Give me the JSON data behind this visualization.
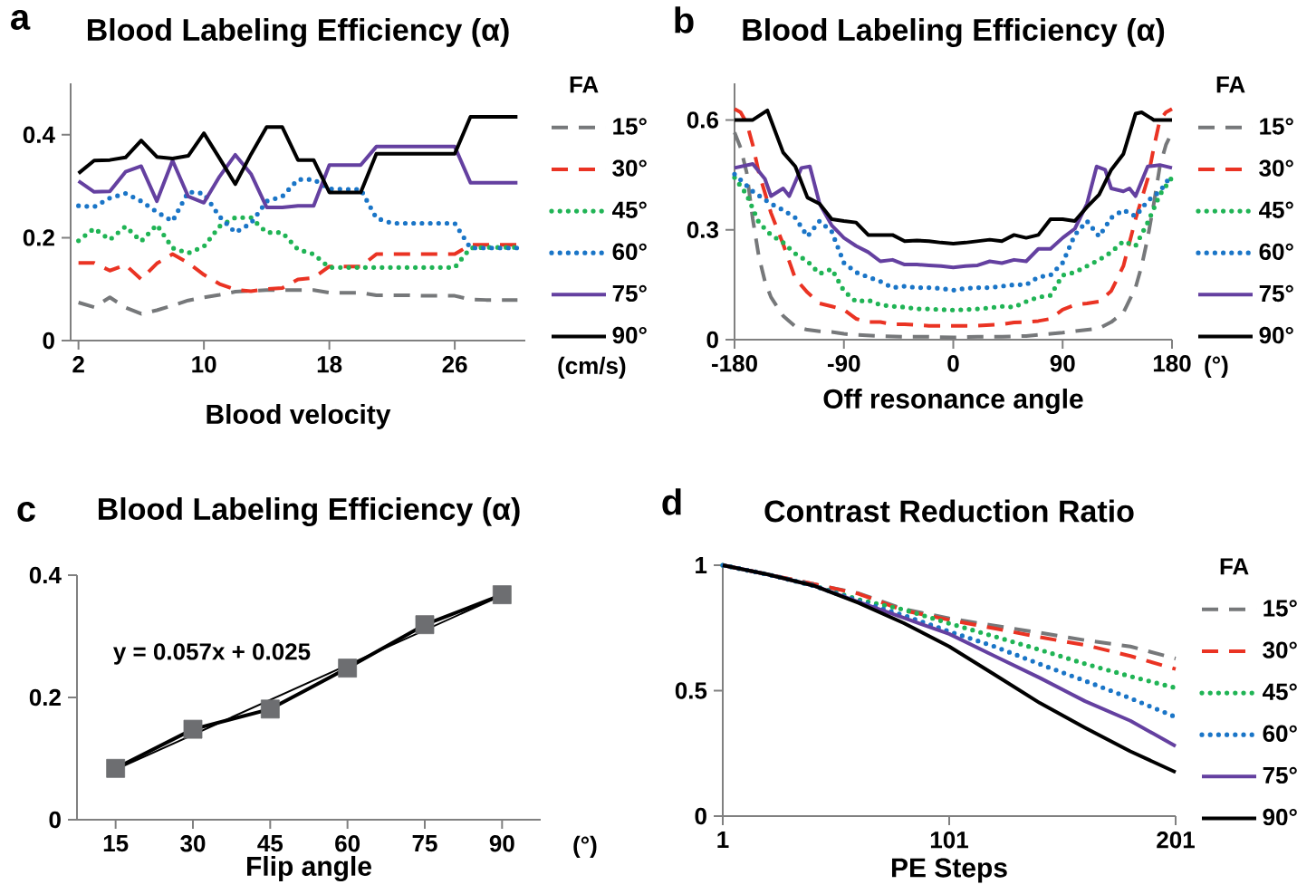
{
  "chart_data": [
    {
      "type": "line",
      "title": "Blood Labeling Efficiency (α)",
      "xlabel": "Blood velocity",
      "legend_title": "FA",
      "legend": "right",
      "annotations": [
        "a",
        "(cm/s)"
      ],
      "x": [
        2,
        3,
        4,
        5,
        6,
        7,
        8,
        9,
        10,
        11,
        12,
        13,
        14,
        15,
        16,
        17,
        18,
        19,
        20,
        21,
        22,
        23,
        24,
        25,
        26,
        27,
        28,
        29,
        30
      ],
      "xlim": [
        1.5,
        30.5
      ],
      "ylim": [
        0,
        0.5
      ],
      "xticks": [
        2,
        10,
        18,
        26
      ],
      "yticks": [
        0,
        0.2,
        0.4
      ],
      "series": [
        {
          "name": "15°",
          "color": "#76787a",
          "line_style": "dashed",
          "values": [
            0.074,
            0.065,
            0.084,
            0.064,
            0.052,
            0.059,
            0.068,
            0.078,
            0.084,
            0.089,
            0.095,
            0.097,
            0.098,
            0.098,
            0.098,
            0.098,
            0.093,
            0.093,
            0.093,
            0.088,
            0.088,
            0.088,
            0.087,
            0.087,
            0.087,
            0.08,
            0.079,
            0.079,
            0.079
          ]
        },
        {
          "name": "30°",
          "color": "#ea3323",
          "line_style": "dashed",
          "values": [
            0.151,
            0.151,
            0.136,
            0.147,
            0.119,
            0.15,
            0.168,
            0.151,
            0.128,
            0.11,
            0.099,
            0.096,
            0.1,
            0.102,
            0.119,
            0.122,
            0.144,
            0.144,
            0.144,
            0.168,
            0.168,
            0.168,
            0.168,
            0.168,
            0.168,
            0.186,
            0.186,
            0.186,
            0.186
          ]
        },
        {
          "name": "45°",
          "color": "#20b455",
          "line_style": "dotted",
          "values": [
            0.194,
            0.218,
            0.196,
            0.222,
            0.193,
            0.225,
            0.18,
            0.17,
            0.183,
            0.222,
            0.239,
            0.239,
            0.21,
            0.21,
            0.177,
            0.168,
            0.142,
            0.142,
            0.142,
            0.142,
            0.142,
            0.142,
            0.142,
            0.142,
            0.142,
            0.18,
            0.181,
            0.181,
            0.181
          ]
        },
        {
          "name": "60°",
          "color": "#1a75c7",
          "line_style": "dotted",
          "values": [
            0.262,
            0.26,
            0.277,
            0.286,
            0.271,
            0.25,
            0.232,
            0.289,
            0.286,
            0.241,
            0.21,
            0.228,
            0.271,
            0.28,
            0.313,
            0.313,
            0.295,
            0.294,
            0.294,
            0.238,
            0.228,
            0.228,
            0.228,
            0.228,
            0.228,
            0.18,
            0.18,
            0.18,
            0.18
          ]
        },
        {
          "name": "75°",
          "color": "#6440a0",
          "line_style": "solid",
          "values": [
            0.31,
            0.289,
            0.29,
            0.328,
            0.339,
            0.271,
            0.35,
            0.28,
            0.268,
            0.319,
            0.361,
            0.324,
            0.259,
            0.259,
            0.262,
            0.262,
            0.341,
            0.341,
            0.341,
            0.377,
            0.377,
            0.377,
            0.377,
            0.377,
            0.377,
            0.307,
            0.307,
            0.307,
            0.307
          ]
        },
        {
          "name": "90°",
          "color": "#000000",
          "line_style": "solid",
          "values": [
            0.325,
            0.35,
            0.351,
            0.356,
            0.389,
            0.357,
            0.354,
            0.359,
            0.403,
            0.354,
            0.304,
            0.362,
            0.415,
            0.415,
            0.351,
            0.351,
            0.288,
            0.288,
            0.288,
            0.363,
            0.363,
            0.363,
            0.363,
            0.363,
            0.363,
            0.435,
            0.435,
            0.435,
            0.435
          ]
        }
      ]
    },
    {
      "type": "line",
      "title": "Blood Labeling Efficiency (α)",
      "xlabel": "Off resonance angle",
      "legend_title": "FA",
      "legend": "right",
      "annotations": [
        "b",
        "(°)"
      ],
      "xlim": [
        -180,
        180
      ],
      "ylim": [
        0,
        0.7
      ],
      "xticks": [
        -180,
        -90,
        0,
        90,
        180
      ],
      "yticks": [
        0,
        0.3,
        0.6
      ],
      "series": [
        {
          "name": "15°",
          "color": "#76787a",
          "line_style": "dashed",
          "x": [
            -180,
            -175,
            -170,
            -165,
            -160,
            -155,
            -150,
            -140,
            -130,
            -120,
            -110,
            -100,
            -90,
            -80,
            -60,
            -40,
            -20,
            0,
            20,
            40,
            60,
            80,
            90,
            100,
            110,
            120,
            130,
            140,
            150,
            155,
            160,
            165,
            170,
            175,
            180
          ],
          "values": [
            0.566,
            0.524,
            0.456,
            0.329,
            0.227,
            0.159,
            0.116,
            0.065,
            0.036,
            0.027,
            0.023,
            0.021,
            0.016,
            0.013,
            0.01,
            0.008,
            0.008,
            0.006,
            0.008,
            0.008,
            0.01,
            0.016,
            0.019,
            0.023,
            0.027,
            0.031,
            0.048,
            0.074,
            0.142,
            0.201,
            0.278,
            0.371,
            0.473,
            0.532,
            0.566
          ]
        },
        {
          "name": "30°",
          "color": "#ea3323",
          "line_style": "dashed",
          "x": [
            -180,
            -175,
            -170,
            -165,
            -160,
            -150,
            -140,
            -130,
            -120,
            -110,
            -100,
            -90,
            -80,
            -70,
            -60,
            -50,
            -40,
            -30,
            -20,
            -10,
            0,
            10,
            20,
            30,
            40,
            50,
            60,
            70,
            80,
            90,
            100,
            110,
            120,
            130,
            140,
            150,
            160,
            165,
            170,
            175,
            180
          ],
          "values": [
            0.63,
            0.621,
            0.592,
            0.532,
            0.456,
            0.346,
            0.261,
            0.167,
            0.129,
            0.099,
            0.091,
            0.082,
            0.057,
            0.048,
            0.048,
            0.042,
            0.042,
            0.04,
            0.038,
            0.038,
            0.038,
            0.038,
            0.038,
            0.04,
            0.042,
            0.047,
            0.048,
            0.051,
            0.057,
            0.082,
            0.095,
            0.099,
            0.104,
            0.133,
            0.201,
            0.329,
            0.439,
            0.524,
            0.6,
            0.621,
            0.63
          ]
        },
        {
          "name": "45°",
          "color": "#20b455",
          "line_style": "dotted",
          "x": [
            -180,
            -170,
            -160,
            -150,
            -140,
            -130,
            -120,
            -110,
            -100,
            -90,
            -80,
            -70,
            -60,
            -50,
            -40,
            -30,
            -20,
            -10,
            0,
            10,
            20,
            30,
            40,
            50,
            60,
            70,
            80,
            90,
            100,
            110,
            120,
            130,
            140,
            150,
            160,
            170,
            180
          ],
          "values": [
            0.443,
            0.396,
            0.32,
            0.286,
            0.265,
            0.235,
            0.214,
            0.18,
            0.193,
            0.133,
            0.104,
            0.108,
            0.095,
            0.091,
            0.089,
            0.084,
            0.084,
            0.082,
            0.081,
            0.082,
            0.084,
            0.087,
            0.091,
            0.089,
            0.104,
            0.116,
            0.121,
            0.176,
            0.184,
            0.201,
            0.218,
            0.239,
            0.269,
            0.256,
            0.32,
            0.396,
            0.443
          ]
        },
        {
          "name": "60°",
          "color": "#1a75c7",
          "line_style": "dotted",
          "x": [
            -180,
            -165,
            -150,
            -140,
            -130,
            -120,
            -110,
            -100,
            -90,
            -80,
            -70,
            -60,
            -50,
            -40,
            -30,
            -20,
            -10,
            0,
            10,
            20,
            30,
            40,
            50,
            60,
            70,
            80,
            90,
            100,
            110,
            120,
            130,
            140,
            150,
            160,
            170,
            180
          ],
          "values": [
            0.452,
            0.405,
            0.371,
            0.354,
            0.333,
            0.282,
            0.324,
            0.295,
            0.21,
            0.184,
            0.171,
            0.159,
            0.142,
            0.146,
            0.142,
            0.142,
            0.14,
            0.135,
            0.14,
            0.142,
            0.142,
            0.146,
            0.15,
            0.15,
            0.171,
            0.176,
            0.21,
            0.286,
            0.324,
            0.282,
            0.333,
            0.354,
            0.337,
            0.379,
            0.405,
            0.452
          ]
        },
        {
          "name": "75°",
          "color": "#6440a0",
          "line_style": "solid",
          "x": [
            -180,
            -165,
            -155,
            -150,
            -140,
            -135,
            -125,
            -118,
            -110,
            -100,
            -90,
            -80,
            -70,
            -60,
            -50,
            -40,
            -30,
            -20,
            -10,
            0,
            10,
            20,
            30,
            40,
            50,
            60,
            70,
            80,
            90,
            100,
            110,
            118,
            125,
            130,
            140,
            145,
            150,
            160,
            170,
            180
          ],
          "values": [
            0.469,
            0.48,
            0.439,
            0.392,
            0.413,
            0.392,
            0.469,
            0.473,
            0.371,
            0.312,
            0.278,
            0.256,
            0.239,
            0.214,
            0.218,
            0.205,
            0.205,
            0.203,
            0.201,
            0.197,
            0.201,
            0.203,
            0.214,
            0.209,
            0.218,
            0.214,
            0.248,
            0.248,
            0.278,
            0.303,
            0.371,
            0.473,
            0.464,
            0.413,
            0.405,
            0.413,
            0.392,
            0.473,
            0.477,
            0.469
          ]
        },
        {
          "name": "90°",
          "color": "#000000",
          "line_style": "solid",
          "x": [
            -180,
            -165,
            -153,
            -140,
            -130,
            -120,
            -110,
            -100,
            -90,
            -80,
            -70,
            -60,
            -50,
            -40,
            -30,
            -20,
            -10,
            0,
            10,
            20,
            30,
            40,
            50,
            60,
            70,
            80,
            90,
            100,
            110,
            120,
            130,
            140,
            150,
            155,
            165,
            180
          ],
          "values": [
            0.6,
            0.6,
            0.626,
            0.511,
            0.473,
            0.388,
            0.371,
            0.329,
            0.324,
            0.32,
            0.286,
            0.286,
            0.286,
            0.269,
            0.271,
            0.269,
            0.265,
            0.262,
            0.265,
            0.269,
            0.273,
            0.269,
            0.286,
            0.278,
            0.286,
            0.329,
            0.329,
            0.324,
            0.362,
            0.396,
            0.464,
            0.507,
            0.617,
            0.621,
            0.6,
            0.6
          ]
        }
      ]
    },
    {
      "type": "line",
      "title": "Blood Labeling Efficiency (α)",
      "xlabel": "Flip angle",
      "annotations": [
        "c",
        "(°)",
        "y = 0.057x + 0.025"
      ],
      "xlim": [
        7.5,
        97.5
      ],
      "ylim": [
        0,
        0.4
      ],
      "xticks": [
        15,
        30,
        45,
        60,
        75,
        90
      ],
      "yticks": [
        0,
        0.2,
        0.4
      ],
      "series": [
        {
          "type": "line",
          "color": "#000000",
          "line_style": "solid",
          "x": [
            15,
            30,
            45,
            60,
            75,
            90
          ],
          "values": [
            0.084,
            0.148,
            0.181,
            0.248,
            0.319,
            0.368
          ]
        },
        {
          "type": "line",
          "color": "#000000",
          "line_style": "solid",
          "x": [
            15,
            90
          ],
          "values": [
            0.082,
            0.367
          ]
        },
        {
          "type": "scatter",
          "color": "#6d6e71",
          "marker": "square",
          "x": [
            15,
            30,
            45,
            60,
            75,
            90
          ],
          "values": [
            0.084,
            0.148,
            0.181,
            0.248,
            0.319,
            0.368
          ]
        }
      ]
    },
    {
      "type": "line",
      "title": "Contrast Reduction Ratio",
      "xlabel": "PE Steps",
      "legend_title": "FA",
      "legend": "right",
      "annotations": [
        "d"
      ],
      "x": [
        1,
        21,
        41,
        61,
        81,
        101,
        121,
        141,
        161,
        181,
        201
      ],
      "xlim": [
        1,
        201
      ],
      "ylim": [
        0,
        1
      ],
      "xticks": [
        1,
        101,
        201
      ],
      "yticks": [
        0,
        0.5,
        1
      ],
      "series": [
        {
          "name": "15°",
          "color": "#76787a",
          "line_style": "dashed",
          "values": [
            1,
            0.963,
            0.925,
            0.888,
            0.825,
            0.788,
            0.759,
            0.731,
            0.701,
            0.676,
            0.628
          ]
        },
        {
          "name": "30°",
          "color": "#ea3323",
          "line_style": "dashed",
          "values": [
            1,
            0.963,
            0.925,
            0.886,
            0.819,
            0.782,
            0.748,
            0.713,
            0.682,
            0.638,
            0.586
          ]
        },
        {
          "name": "45°",
          "color": "#20b455",
          "line_style": "dotted",
          "values": [
            1,
            0.963,
            0.919,
            0.863,
            0.823,
            0.768,
            0.716,
            0.663,
            0.607,
            0.557,
            0.511
          ]
        },
        {
          "name": "60°",
          "color": "#1a75c7",
          "line_style": "dotted",
          "values": [
            1,
            0.963,
            0.919,
            0.857,
            0.8,
            0.736,
            0.676,
            0.606,
            0.539,
            0.47,
            0.395
          ]
        },
        {
          "name": "75°",
          "color": "#6440a0",
          "line_style": "solid",
          "values": [
            1,
            0.963,
            0.919,
            0.853,
            0.79,
            0.726,
            0.638,
            0.551,
            0.458,
            0.38,
            0.279
          ]
        },
        {
          "name": "90°",
          "color": "#000000",
          "line_style": "solid",
          "values": [
            1,
            0.963,
            0.919,
            0.85,
            0.769,
            0.676,
            0.564,
            0.451,
            0.352,
            0.258,
            0.175
          ]
        }
      ]
    }
  ]
}
